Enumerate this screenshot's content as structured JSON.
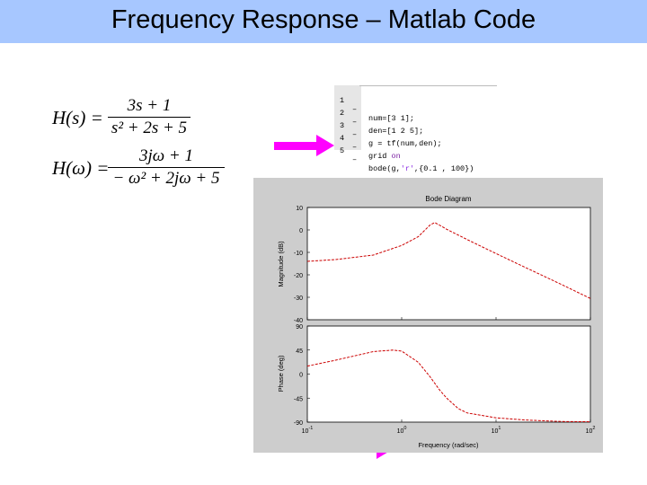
{
  "slide": {
    "title": "Frequency Response – Matlab Code",
    "title_bar_color": "#a7c7ff"
  },
  "equations": {
    "h_s": {
      "lhs": "H(s) =",
      "numerator": "3s + 1",
      "denominator": "s² + 2s + 5"
    },
    "h_w": {
      "lhs": "H(ω) =",
      "numerator": "3jω + 1",
      "denominator": "− ω² + 2jω + 5"
    }
  },
  "code_editor": {
    "lines": [
      {
        "num": "1",
        "dash": "–",
        "code": "num=[3 1];"
      },
      {
        "num": "2",
        "dash": "–",
        "code": "den=[1 2 5];"
      },
      {
        "num": "3",
        "dash": "–",
        "code": "g = tf(num,den);"
      },
      {
        "num": "4",
        "dash": "–",
        "code": "grid ",
        "keyword": "on"
      },
      {
        "num": "5",
        "dash": "–",
        "code": "bode(g,",
        "string": "'r'",
        "code_tail": ",{0.1 , 100})"
      }
    ]
  },
  "arrows": {
    "color": "#ff00ff"
  },
  "figure": {
    "title": "Bode Diagram",
    "xlabel": "Frequency (rad/sec)",
    "magnitude_ylabel": "Magnitude (dB)",
    "phase_ylabel": "Phase (deg)",
    "magnitude_ticks": [
      "10",
      "0",
      "-10",
      "-20",
      "-30",
      "-40"
    ],
    "phase_ticks": [
      "90",
      "45",
      "0",
      "-45",
      "-90"
    ],
    "x_ticks": [
      {
        "base": "10",
        "exp": "-1"
      },
      {
        "base": "10",
        "exp": "0"
      },
      {
        "base": "10",
        "exp": "1"
      },
      {
        "base": "10",
        "exp": "2"
      }
    ],
    "line_color": "#cc0000"
  },
  "chart_data": [
    {
      "type": "line",
      "title": "Bode Diagram",
      "xlabel": "Frequency (rad/sec)",
      "ylabel": "Magnitude (dB)",
      "x_scale": "log",
      "xlim": [
        0.1,
        100
      ],
      "ylim": [
        -40,
        10
      ],
      "grid": false,
      "series": [
        {
          "x": [
            0.1,
            0.2,
            0.5,
            1,
            1.5,
            2,
            2.24,
            2.5,
            3,
            5,
            10,
            20,
            50,
            100
          ],
          "y": [
            -14,
            -13.2,
            -11.2,
            -6.9,
            -3,
            2.2,
            3.3,
            2.2,
            0.3,
            -4.4,
            -10.5,
            -16.5,
            -24.4,
            -30.5
          ]
        }
      ]
    },
    {
      "type": "line",
      "title": "",
      "xlabel": "Frequency (rad/sec)",
      "ylabel": "Phase (deg)",
      "x_scale": "log",
      "xlim": [
        0.1,
        100
      ],
      "ylim": [
        -90,
        90
      ],
      "grid": false,
      "series": [
        {
          "x": [
            0.1,
            0.2,
            0.5,
            0.8,
            1,
            1.5,
            2,
            2.5,
            3,
            4,
            5,
            10,
            20,
            50,
            100
          ],
          "y": [
            15,
            26,
            42,
            45,
            43,
            22,
            -5,
            -29,
            -45,
            -65,
            -73,
            -82,
            -86,
            -88.8,
            -89.4
          ]
        }
      ]
    }
  ]
}
